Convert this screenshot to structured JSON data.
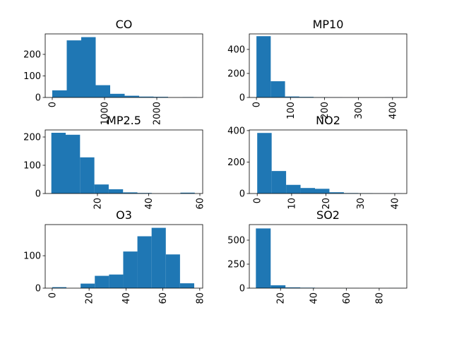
{
  "chart_data": [
    {
      "type": "histogram",
      "title": "CO",
      "color": "#1f77b4",
      "bins": [
        0,
        277,
        554,
        831,
        1108,
        1385,
        1662,
        1939,
        2216,
        2493,
        2770
      ],
      "values": [
        33,
        265,
        280,
        57,
        17,
        8,
        4,
        3,
        0,
        1
      ],
      "xlim": [
        -135,
        2878
      ],
      "ylim": [
        0,
        295
      ],
      "xticks": [
        0,
        1000,
        2000
      ],
      "yticks": [
        0,
        100,
        200
      ]
    },
    {
      "type": "histogram",
      "title": "MP10",
      "color": "#1f77b4",
      "bins": [
        0,
        42,
        84,
        126,
        168,
        210,
        252,
        294,
        336,
        378,
        420
      ],
      "values": [
        510,
        135,
        8,
        5,
        2,
        1,
        0,
        0,
        0,
        1
      ],
      "xlim": [
        -21,
        442
      ],
      "ylim": [
        0,
        529
      ],
      "xticks": [
        0,
        100,
        200,
        300,
        400
      ],
      "yticks": [
        0,
        200,
        400
      ]
    },
    {
      "type": "histogram",
      "title": "MP2.5",
      "color": "#1f77b4",
      "bins": [
        2,
        7.6,
        13.2,
        18.8,
        24.4,
        30,
        35.6,
        41.2,
        46.8,
        52.4,
        58
      ],
      "values": [
        215,
        208,
        128,
        32,
        15,
        4,
        2,
        0,
        0,
        3
      ],
      "xlim": [
        -0.4,
        61.1
      ],
      "ylim": [
        0,
        225
      ],
      "xticks": [
        20,
        40,
        60
      ],
      "yticks": [
        0,
        100,
        200
      ]
    },
    {
      "type": "histogram",
      "title": "NO2",
      "color": "#1f77b4",
      "bins": [
        0,
        4.2,
        8.4,
        12.6,
        16.8,
        21,
        25.2,
        29.4,
        33.6,
        37.8,
        42
      ],
      "values": [
        385,
        143,
        55,
        35,
        30,
        8,
        3,
        2,
        1,
        1
      ],
      "xlim": [
        -2.3,
        43.5
      ],
      "ylim": [
        0,
        404
      ],
      "xticks": [
        0,
        10,
        20,
        30,
        40
      ],
      "yticks": [
        0,
        200,
        400
      ]
    },
    {
      "type": "histogram",
      "title": "O3",
      "color": "#1f77b4",
      "bins": [
        0,
        7.7,
        15.4,
        23.1,
        30.8,
        38.5,
        46.2,
        53.9,
        61.6,
        69.3,
        77
      ],
      "values": [
        3,
        0,
        14,
        38,
        42,
        113,
        160,
        186,
        104,
        15
      ],
      "xlim": [
        -3.8,
        81.6
      ],
      "ylim": [
        0,
        196
      ],
      "xticks": [
        0,
        20,
        40,
        60,
        80
      ],
      "yticks": [
        0,
        100
      ]
    },
    {
      "type": "histogram",
      "title": "SO2",
      "color": "#1f77b4",
      "bins": [
        5,
        14,
        23,
        32,
        41,
        50,
        59,
        68,
        77,
        86,
        95
      ],
      "values": [
        622,
        30,
        8,
        5,
        2,
        1,
        1,
        0,
        0,
        1
      ],
      "xlim": [
        1,
        96.8
      ],
      "ylim": [
        0,
        662
      ],
      "xticks": [
        20,
        40,
        60,
        80
      ],
      "yticks": [
        0,
        250,
        500
      ]
    }
  ]
}
